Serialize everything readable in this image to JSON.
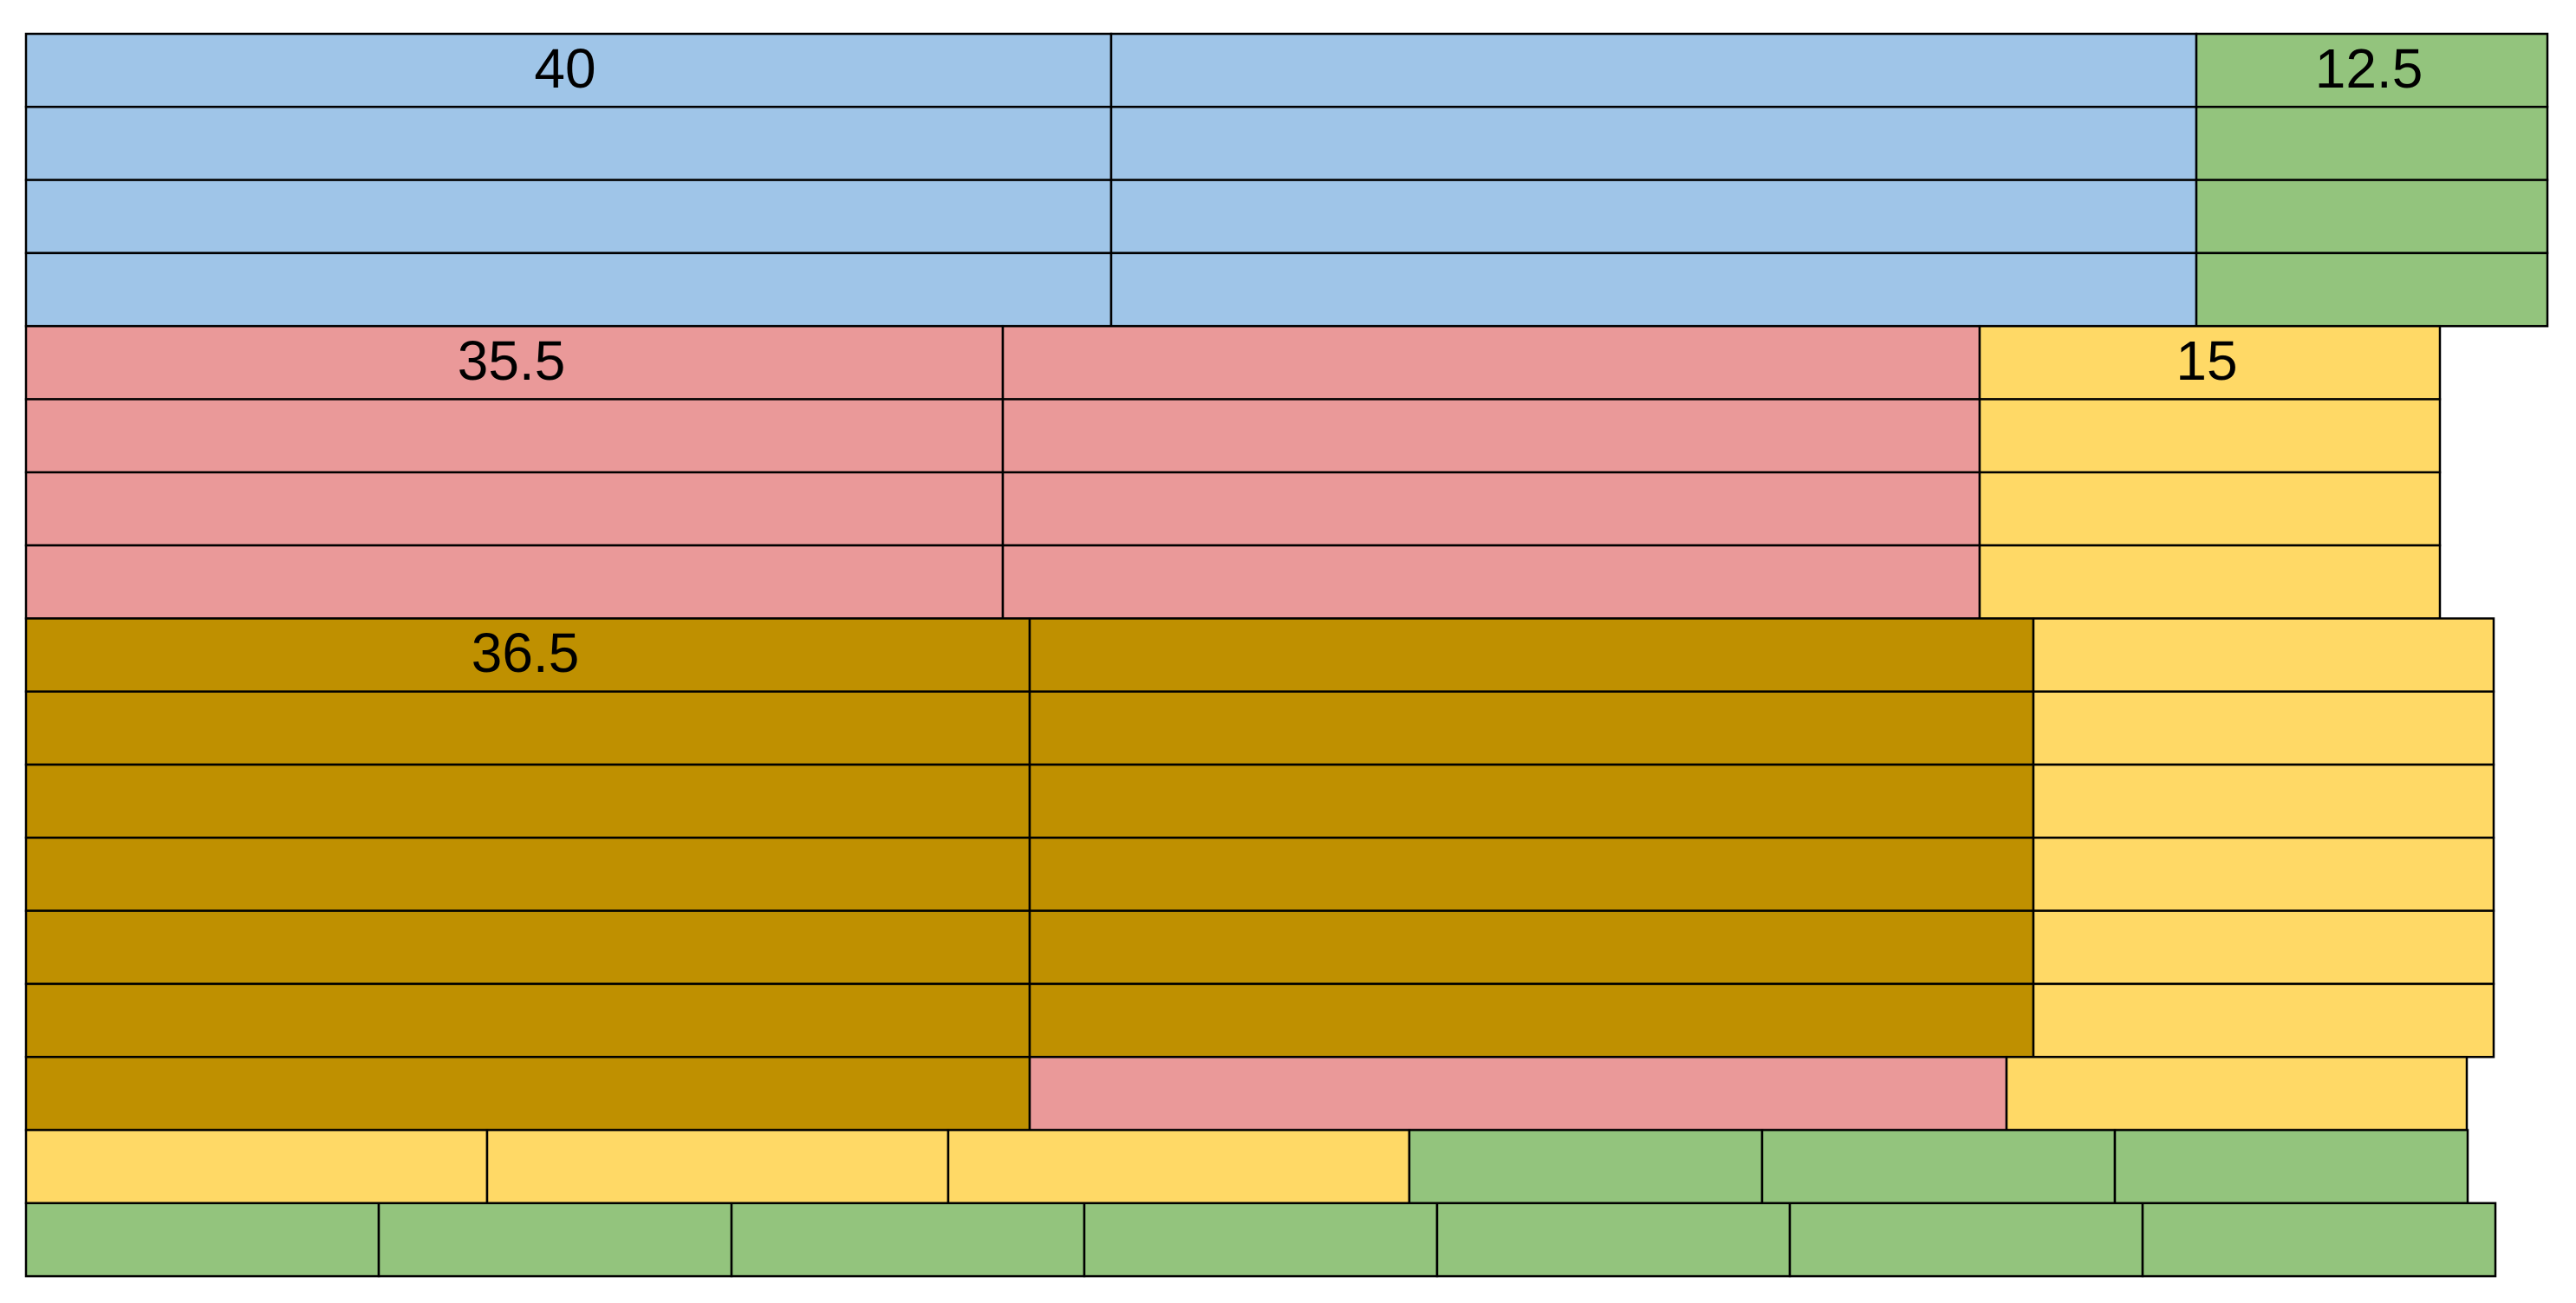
{
  "colors": {
    "blue": "#9fc5e8",
    "green": "#93c47d",
    "pink": "#ea9999",
    "yellow": "#ffd966",
    "gold": "#bf9000"
  },
  "labels": {
    "blue_group": "40",
    "green_group": "12.5",
    "pink_group": "35.5",
    "yellow_group": "15",
    "gold_group": "36.5"
  }
}
